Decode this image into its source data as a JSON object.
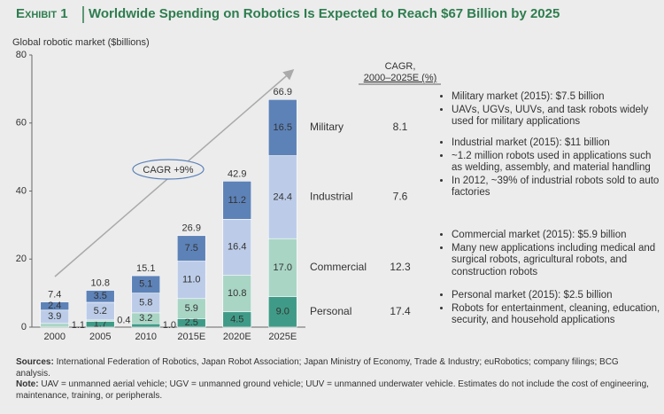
{
  "chart_data": {
    "type": "stacked_bar",
    "exhibit": "Exhibit 1",
    "title": "Worldwide Spending on Robotics Is Expected to Reach $67 Billion by 2025",
    "ylabel": "Global robotic market ($billions)",
    "categories": [
      "2000",
      "2005",
      "2010",
      "2015E",
      "2020E",
      "2025E"
    ],
    "ylim": [
      0,
      80
    ],
    "yticks": [
      0,
      20,
      40,
      60,
      80
    ],
    "grid": false,
    "totals": [
      7.4,
      10.8,
      15.1,
      26.9,
      42.9,
      66.9
    ],
    "series": [
      {
        "name": "Personal",
        "color": "#3f9b87",
        "values": [
          null,
          1.7,
          1.0,
          2.5,
          4.5,
          9.0
        ],
        "value_labels": [
          null,
          "1.7",
          "1.0",
          "2.5",
          "4.5",
          "9.0"
        ],
        "cagr": 17.4
      },
      {
        "name": "Commercial",
        "color": "#a9d5c5",
        "values": [
          1.1,
          0.4,
          3.2,
          5.9,
          10.8,
          17.0
        ],
        "value_labels": [
          "1.1",
          "0.4",
          "3.2",
          "5.9",
          "10.8",
          "17.0"
        ],
        "cagr": 12.3
      },
      {
        "name": "Industrial",
        "color": "#bccce8",
        "values": [
          3.9,
          5.2,
          5.8,
          11.0,
          16.4,
          24.4
        ],
        "value_labels": [
          "3.9",
          "5.2",
          "5.8",
          "11.0",
          "16.4",
          "24.4"
        ],
        "cagr": 7.6
      },
      {
        "name": "Military",
        "color": "#5d82b8",
        "values": [
          2.4,
          3.5,
          5.1,
          7.5,
          11.2,
          16.5
        ],
        "value_labels": [
          "2.4",
          "3.5",
          "5.1",
          "7.5",
          "11.2",
          "16.5"
        ],
        "cagr": 8.1
      }
    ],
    "cagr_header": [
      "CAGR,",
      "2000–2025E (%)"
    ],
    "annotation": "CAGR +9%"
  },
  "notes": [
    {
      "heading": "Military market (2015): $7.5 billion",
      "bullets": [
        "UAVs, UGVs, UUVs, and task robots widely used for military applications"
      ]
    },
    {
      "heading": "Industrial market (2015): $11 billion",
      "bullets": [
        "~1.2 million robots used in applications such as welding, assembly, and material handling",
        "In 2012, ~39% of industrial robots sold to auto factories"
      ]
    },
    {
      "heading": "Commercial market (2015): $5.9 billion",
      "bullets": [
        "Many new applications including medical and surgical robots, agricultural robots, and construction robots"
      ]
    },
    {
      "heading": "Personal market (2015): $2.5 billion",
      "bullets": [
        "Robots for entertainment, cleaning, education, security, and household applications"
      ]
    }
  ],
  "footer": {
    "sources_label": "Sources:",
    "sources": "International Federation of Robotics, Japan Robot Association; Japan Ministry of Economy, Trade & Industry; euRobotics; company filings; BCG analysis.",
    "note_label": "Note:",
    "note": "UAV = unmanned aerial vehicle; UGV = unmanned ground vehicle; UUV = unmanned underwater vehicle. Estimates do not include the cost of engineering, maintenance, training, or peripherals."
  }
}
